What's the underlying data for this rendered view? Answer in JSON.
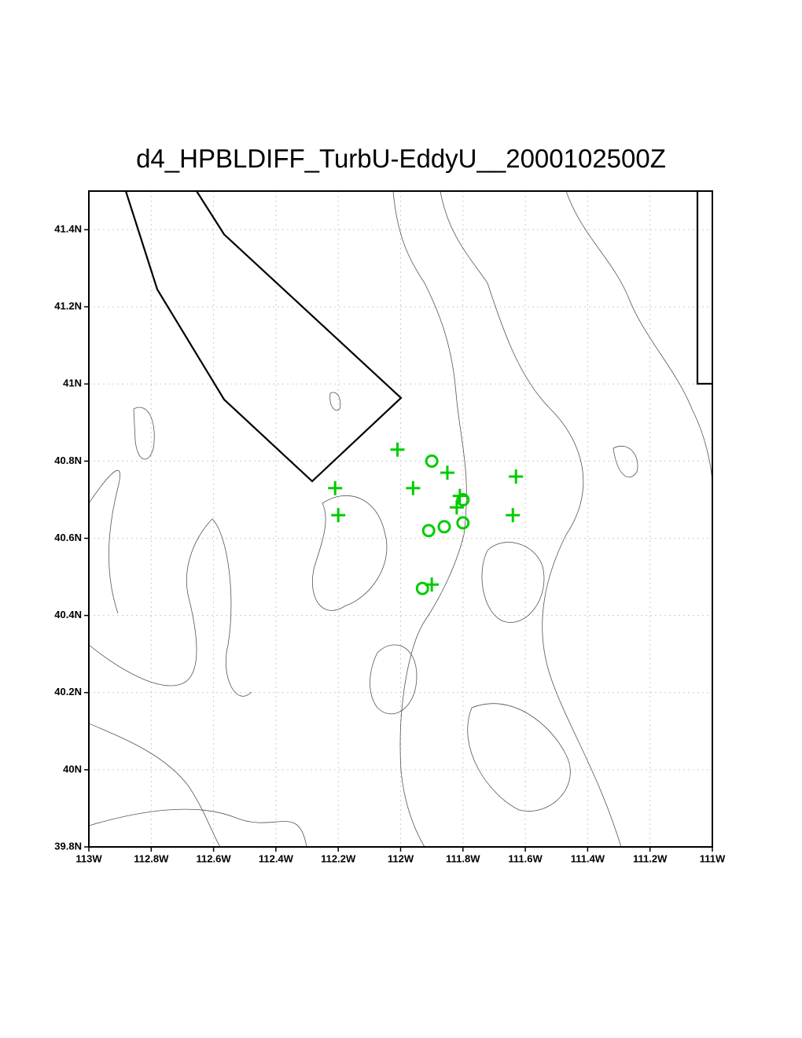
{
  "chart_data": {
    "type": "scatter",
    "title": "d4_HPBLDIFF_TurbU-EddyU__2000102500Z",
    "xlim": [
      -113,
      -111
    ],
    "ylim": [
      39.8,
      41.5
    ],
    "xticks": [
      {
        "value": -113,
        "label": "113W"
      },
      {
        "value": -112.8,
        "label": "112.8W"
      },
      {
        "value": -112.6,
        "label": "112.6W"
      },
      {
        "value": -112.4,
        "label": "112.4W"
      },
      {
        "value": -112.2,
        "label": "112.2W"
      },
      {
        "value": -112,
        "label": "112W"
      },
      {
        "value": -111.8,
        "label": "111.8W"
      },
      {
        "value": -111.6,
        "label": "111.6W"
      },
      {
        "value": -111.4,
        "label": "111.4W"
      },
      {
        "value": -111.2,
        "label": "111.2W"
      },
      {
        "value": -111,
        "label": "111W"
      }
    ],
    "yticks": [
      {
        "value": 39.8,
        "label": "39.8N"
      },
      {
        "value": 40,
        "label": "40N"
      },
      {
        "value": 40.2,
        "label": "40.2N"
      },
      {
        "value": 40.4,
        "label": "40.4N"
      },
      {
        "value": 40.6,
        "label": "40.6N"
      },
      {
        "value": 40.8,
        "label": "40.8N"
      },
      {
        "value": 41,
        "label": "41N"
      },
      {
        "value": 41.2,
        "label": "41.2N"
      },
      {
        "value": 41.4,
        "label": "41.4N"
      }
    ],
    "grid": true,
    "series": [
      {
        "marker": "plus",
        "color": "#00cc00",
        "x": [
          -112.01,
          -111.85,
          -111.96,
          -112.21,
          -112.2,
          -111.63,
          -111.64,
          -111.81,
          -111.82,
          -111.9
        ],
        "y": [
          40.83,
          40.77,
          40.73,
          40.73,
          40.66,
          40.76,
          40.66,
          40.71,
          40.68,
          40.48
        ]
      },
      {
        "marker": "circle",
        "color": "#00cc00",
        "x": [
          -111.9,
          -111.8,
          -111.8,
          -111.86,
          -111.91,
          -111.93
        ],
        "y": [
          40.8,
          40.7,
          40.64,
          40.63,
          40.62,
          40.47
        ]
      }
    ]
  }
}
